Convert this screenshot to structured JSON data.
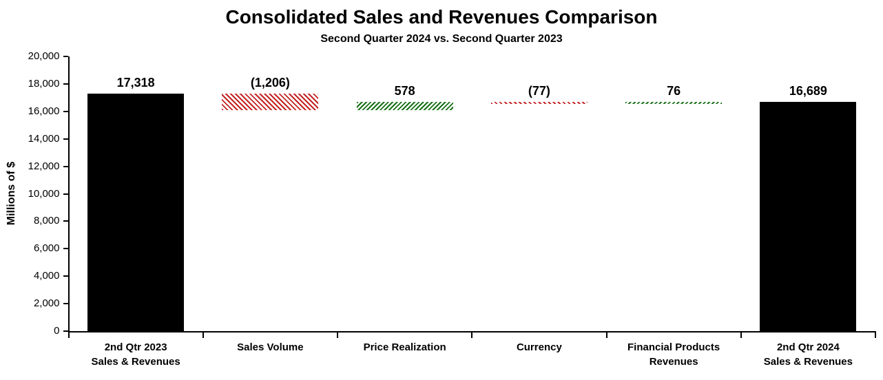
{
  "chart_data": {
    "type": "bar",
    "subtype": "waterfall",
    "title": "Consolidated Sales and Revenues Comparison",
    "subtitle": "Second Quarter 2024 vs. Second Quarter 2023",
    "ylabel": "Millions of $",
    "ylim": [
      0,
      20000
    ],
    "ytick_step": 2000,
    "grid": false,
    "legend": "none",
    "yticks": [
      {
        "value": 20000,
        "label": "20,000"
      },
      {
        "value": 18000,
        "label": "18,000"
      },
      {
        "value": 16000,
        "label": "16,000"
      },
      {
        "value": 14000,
        "label": "14,000"
      },
      {
        "value": 12000,
        "label": "12,000"
      },
      {
        "value": 10000,
        "label": "10,000"
      },
      {
        "value": 8000,
        "label": "8,000"
      },
      {
        "value": 6000,
        "label": "6,000"
      },
      {
        "value": 4000,
        "label": "4,000"
      },
      {
        "value": 2000,
        "label": "2,000"
      },
      {
        "value": 0,
        "label": "0"
      }
    ],
    "categories": [
      {
        "id": "q2-2023-sales-revenues",
        "lines": [
          "2nd Qtr 2023",
          "Sales & Revenues"
        ]
      },
      {
        "id": "sales-volume",
        "lines": [
          "Sales Volume"
        ]
      },
      {
        "id": "price-realization",
        "lines": [
          "Price Realization"
        ]
      },
      {
        "id": "currency",
        "lines": [
          "Currency"
        ]
      },
      {
        "id": "financial-products-revenues",
        "lines": [
          "Financial Products",
          "Revenues"
        ]
      },
      {
        "id": "q2-2024-sales-revenues",
        "lines": [
          "2nd Qtr 2024",
          "Sales & Revenues"
        ]
      }
    ],
    "bars": [
      {
        "label": "17,318",
        "value": 17318,
        "start": 0,
        "end": 17318,
        "style": "solid"
      },
      {
        "label": "(1,206)",
        "value": -1206,
        "start": 17318,
        "end": 16112,
        "style": "negative"
      },
      {
        "label": "578",
        "value": 578,
        "start": 16112,
        "end": 16690,
        "style": "positive"
      },
      {
        "label": "(77)",
        "value": -77,
        "start": 16690,
        "end": 16613,
        "style": "negative"
      },
      {
        "label": "76",
        "value": 76,
        "start": 16613,
        "end": 16689,
        "style": "positive"
      },
      {
        "label": "16,689",
        "value": 16689,
        "start": 0,
        "end": 16689,
        "style": "solid"
      }
    ],
    "colors": {
      "solid": "#000000",
      "negative": "#c32222",
      "positive": "#167016",
      "axis": "#000000",
      "background": "#ffffff"
    }
  }
}
